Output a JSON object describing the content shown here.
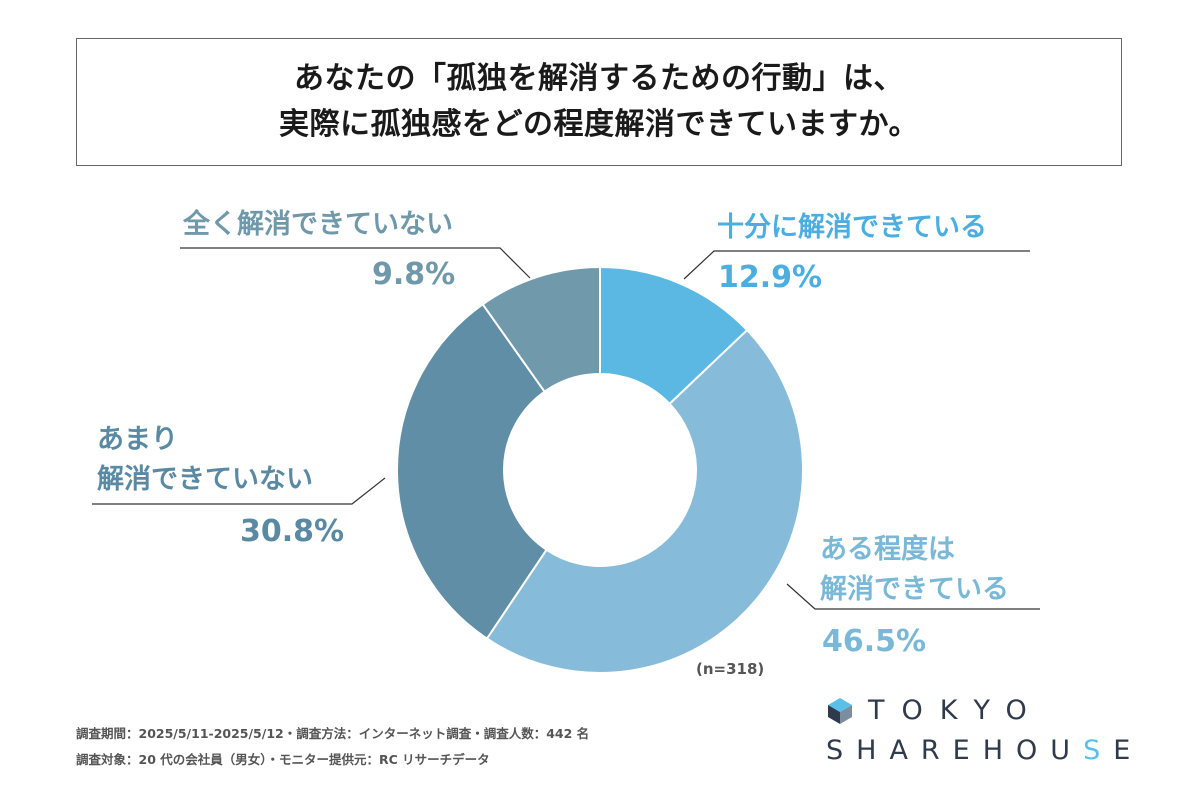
{
  "title": {
    "line1": "あなたの「孤独を解消するための行動」は、",
    "line2": "実際に孤独感をどの程度解消できていますか。"
  },
  "chart_data": {
    "type": "pie",
    "donut": true,
    "start_angle_deg": 0,
    "direction": "clockwise",
    "slices": [
      {
        "label_lines": [
          "十分に解消できている"
        ],
        "value": 12.9,
        "value_text": "12.9%",
        "color": "#5ab8e2",
        "label_color": "#4aaee0"
      },
      {
        "label_lines": [
          "ある程度は",
          "解消できている"
        ],
        "value": 46.5,
        "value_text": "46.5%",
        "color": "#86bcd9",
        "label_color": "#7ab8d8"
      },
      {
        "label_lines": [
          "あまり",
          "解消できていない"
        ],
        "value": 30.8,
        "value_text": "30.8%",
        "color": "#5f8ea6",
        "label_color": "#5a8aa3"
      },
      {
        "label_lines": [
          "全く解消できていない"
        ],
        "value": 9.8,
        "value_text": "9.8%",
        "color": "#7099ac",
        "label_color": "#6f98aa"
      }
    ],
    "sample_note": "(n=318)"
  },
  "footnotes": {
    "line1": "調査期間：2025/5/11-2025/5/12・調査方法：インターネット調査・調査人数：442 名",
    "line2": "調査対象：20 代の会社員（男女）・モニター提供元：RC リサーチデータ"
  },
  "logo": {
    "line1": "TOKYO",
    "line2_main": "SHAREHOU",
    "line2_accent": "S",
    "line2_end": "E",
    "icon": "cube-icon"
  }
}
